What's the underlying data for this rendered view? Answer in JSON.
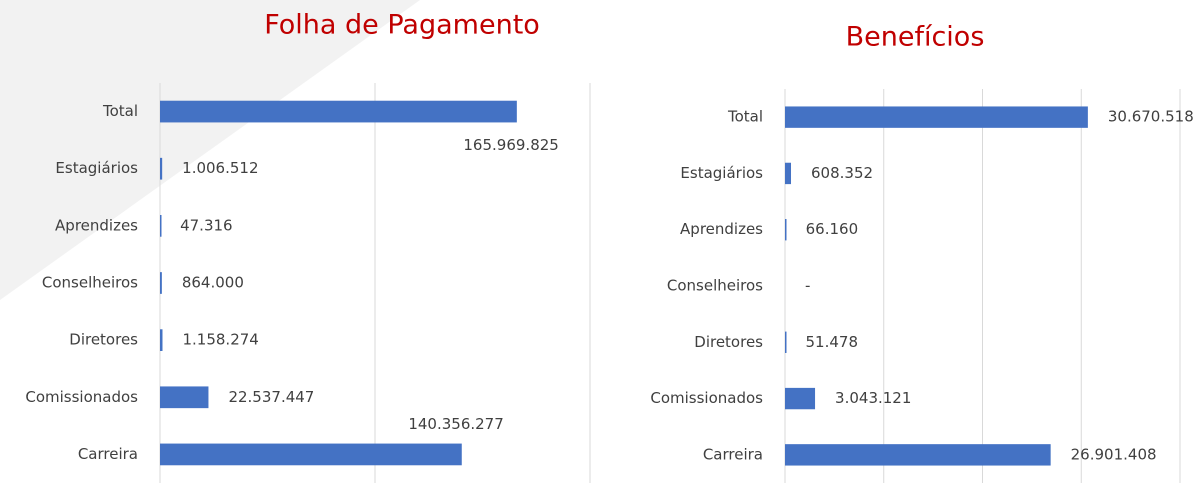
{
  "chart_data": [
    {
      "type": "bar",
      "orientation": "horizontal",
      "title": "Folha de Pagamento",
      "categories": [
        "Total",
        "Estagiários",
        "Aprendizes",
        "Conselheiros",
        "Diretores",
        "Comissionados",
        "Carreira"
      ],
      "values": [
        165969825,
        1006512,
        47316,
        864000,
        1158274,
        22537447,
        140356277
      ],
      "value_labels": [
        "165.969.825",
        "1.006.512",
        "47.316",
        "864.000",
        "1.158.274",
        "22.537.447",
        "140.356.277"
      ],
      "color": "#4472c4",
      "xlim": [
        0,
        200000000
      ],
      "xticks": [
        0,
        100000000,
        200000000
      ],
      "grid": true
    },
    {
      "type": "bar",
      "orientation": "horizontal",
      "title": "Benefícios",
      "categories": [
        "Total",
        "Estagiários",
        "Aprendizes",
        "Conselheiros",
        "Diretores",
        "Comissionados",
        "Carreira"
      ],
      "values": [
        30670518,
        608352,
        66160,
        null,
        51478,
        3043121,
        26901408
      ],
      "value_labels": [
        "30.670.518",
        "608.352",
        "66.160",
        "-",
        "51.478",
        "3.043.121",
        "26.901.408"
      ],
      "color": "#4472c4",
      "xlim": [
        0,
        40000000
      ],
      "xticks": [
        0,
        10000000,
        20000000,
        30000000,
        40000000
      ],
      "grid": true
    }
  ]
}
